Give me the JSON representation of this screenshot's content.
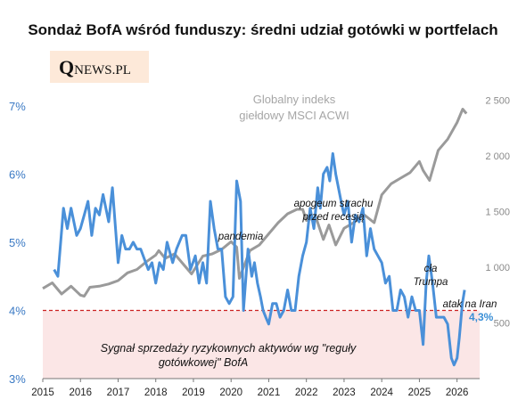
{
  "title": "Sondaż BofA wśród funduszy: średni udział gotówki w portfelach",
  "logo": {
    "q": "Q",
    "rest": "NEWS.PL"
  },
  "colors": {
    "cash": "#4a90d9",
    "msci": "#9a9a9a",
    "threshold": "#cc2222",
    "band": "#fbe6e6",
    "logo_bg": "#fde9d9"
  },
  "chart_data": {
    "type": "line",
    "title": "Sondaż BofA wśród funduszy: średni udział gotówki w portfelach",
    "xlim": [
      2015,
      2026.6
    ],
    "x_ticks": [
      "2015",
      "2016",
      "2017",
      "2018",
      "2019",
      "2020",
      "2021",
      "2022",
      "2023",
      "2024",
      "2025",
      "2026"
    ],
    "y_left": {
      "range": [
        3,
        7.9
      ],
      "ticks": [
        "3%",
        "4%",
        "5%",
        "6%",
        "7%"
      ],
      "tick_values": [
        3,
        4,
        5,
        6,
        7
      ]
    },
    "y_right": {
      "range": [
        0,
        3000
      ],
      "ticks": [
        "500",
        "1 000",
        "1 500",
        "2 000",
        "2 500"
      ],
      "tick_values": [
        500,
        1000,
        1500,
        2000,
        2500
      ]
    },
    "series": [
      {
        "name": "Globalny indeks giełdowy MSCI ACWI",
        "axis": "right",
        "x": [
          2015.0,
          2015.25,
          2015.5,
          2015.75,
          2016.0,
          2016.1,
          2016.25,
          2016.5,
          2016.75,
          2017.0,
          2017.25,
          2017.5,
          2017.75,
          2018.0,
          2018.08,
          2018.25,
          2018.5,
          2018.75,
          2018.95,
          2019.25,
          2019.5,
          2019.75,
          2020.0,
          2020.15,
          2020.22,
          2020.5,
          2020.75,
          2021.0,
          2021.25,
          2021.5,
          2021.75,
          2021.9,
          2022.0,
          2022.25,
          2022.45,
          2022.6,
          2022.78,
          2023.0,
          2023.25,
          2023.5,
          2023.8,
          2024.0,
          2024.25,
          2024.5,
          2024.75,
          2025.0,
          2025.1,
          2025.27,
          2025.5,
          2025.75,
          2026.0,
          2026.15,
          2026.25
        ],
        "values": [
          810,
          860,
          760,
          830,
          750,
          740,
          820,
          830,
          850,
          880,
          950,
          980,
          1050,
          1110,
          1150,
          1080,
          1120,
          1020,
          940,
          1100,
          1120,
          1160,
          1230,
          1180,
          900,
          1150,
          1200,
          1300,
          1400,
          1480,
          1520,
          1520,
          1420,
          1450,
          1250,
          1380,
          1200,
          1350,
          1400,
          1480,
          1400,
          1650,
          1750,
          1800,
          1850,
          1950,
          1870,
          1780,
          2050,
          2150,
          2300,
          2420,
          2380
        ]
      },
      {
        "name": "Średni udział gotówki w portfelach",
        "axis": "left",
        "x": [
          2015.3,
          2015.4,
          2015.55,
          2015.65,
          2015.75,
          2015.9,
          2016.0,
          2016.1,
          2016.2,
          2016.3,
          2016.4,
          2016.5,
          2016.6,
          2016.75,
          2016.85,
          2017.0,
          2017.1,
          2017.2,
          2017.3,
          2017.4,
          2017.5,
          2017.6,
          2017.8,
          2017.9,
          2018.0,
          2018.1,
          2018.2,
          2018.3,
          2018.45,
          2018.55,
          2018.7,
          2018.8,
          2018.92,
          2019.05,
          2019.15,
          2019.25,
          2019.35,
          2019.45,
          2019.55,
          2019.65,
          2019.75,
          2019.85,
          2019.95,
          2020.05,
          2020.15,
          2020.25,
          2020.33,
          2020.45,
          2020.55,
          2020.62,
          2020.7,
          2020.78,
          2020.85,
          2020.92,
          2021.0,
          2021.1,
          2021.2,
          2021.3,
          2021.4,
          2021.5,
          2021.6,
          2021.7,
          2021.8,
          2021.9,
          2022.0,
          2022.1,
          2022.2,
          2022.3,
          2022.37,
          2022.45,
          2022.55,
          2022.62,
          2022.7,
          2022.78,
          2022.85,
          2022.92,
          2023.0,
          2023.1,
          2023.2,
          2023.3,
          2023.4,
          2023.5,
          2023.6,
          2023.7,
          2023.8,
          2023.9,
          2024.0,
          2024.1,
          2024.2,
          2024.3,
          2024.4,
          2024.5,
          2024.6,
          2024.7,
          2024.8,
          2024.9,
          2025.0,
          2025.1,
          2025.18,
          2025.25,
          2025.35,
          2025.45,
          2025.55,
          2025.65,
          2025.75,
          2025.85,
          2025.92,
          2026.0,
          2026.06,
          2026.14,
          2026.2
        ],
        "values": [
          4.6,
          4.5,
          5.5,
          5.2,
          5.5,
          5.1,
          5.2,
          5.4,
          5.6,
          5.1,
          5.5,
          5.4,
          5.7,
          5.3,
          5.8,
          4.7,
          5.1,
          4.9,
          4.9,
          5.0,
          4.9,
          4.9,
          4.6,
          4.7,
          4.4,
          4.7,
          4.6,
          5.0,
          4.7,
          4.9,
          5.1,
          5.1,
          4.6,
          4.8,
          4.4,
          4.7,
          4.4,
          5.6,
          5.2,
          4.9,
          4.9,
          4.2,
          4.1,
          4.2,
          5.9,
          5.6,
          4.0,
          4.9,
          4.5,
          4.7,
          4.4,
          4.2,
          4.0,
          3.9,
          3.8,
          4.1,
          4.1,
          3.9,
          4.0,
          4.3,
          4.0,
          4.0,
          4.5,
          4.8,
          5.0,
          5.5,
          5.2,
          5.8,
          5.5,
          6.0,
          6.1,
          5.9,
          6.3,
          6.0,
          5.8,
          5.6,
          5.4,
          5.6,
          5.0,
          5.4,
          5.3,
          5.5,
          4.8,
          5.2,
          4.9,
          4.8,
          4.7,
          4.4,
          4.5,
          4.0,
          4.0,
          4.3,
          4.2,
          3.9,
          4.2,
          4.0,
          4.0,
          3.5,
          4.4,
          4.8,
          4.4,
          3.9,
          3.9,
          3.9,
          3.8,
          3.3,
          3.2,
          3.3,
          3.6,
          4.1,
          4.3
        ]
      }
    ],
    "threshold": {
      "value": 4.0,
      "label": "Sygnał sprzedaży ryzykownych aktywów wg \"reguły gotówkowej\" BofA"
    },
    "series_label": {
      "line1": "Globalny indeks",
      "line2": "giełdowy MSCI ACWI"
    },
    "annotations": {
      "pandemia": "pandemia",
      "apogeum_line1": "apogeum strachu",
      "apogeum_line2": "przed recesją",
      "cla_line1": "cła",
      "cla_line2": "Trumpa",
      "iran": "atak na Iran",
      "last_value": "4,3%"
    }
  }
}
